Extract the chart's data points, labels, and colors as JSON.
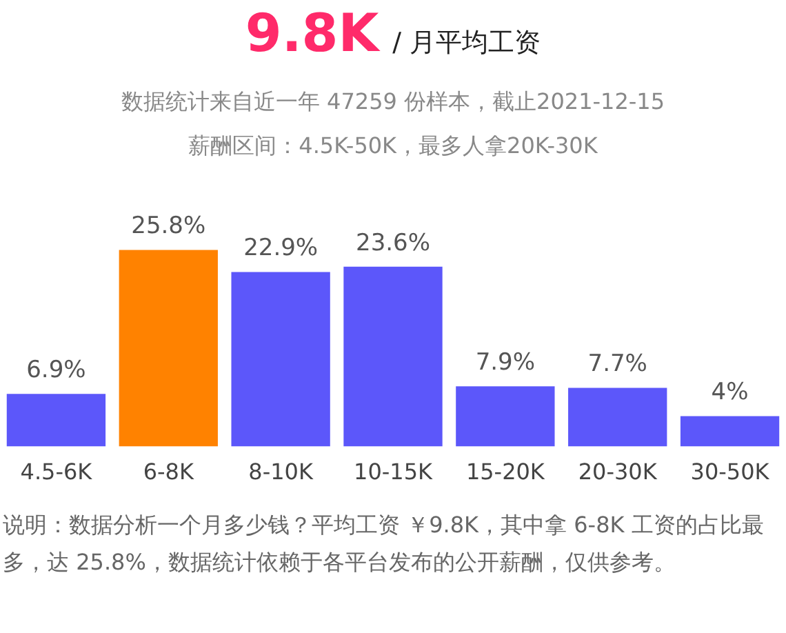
{
  "chart_data": {
    "type": "bar",
    "title": "9.8K",
    "subtitle": "/ 月平均工资",
    "annotations": [
      "数据统计来自近一年 47259 份样本，截止2021-12-15",
      "薪酬区间：4.5K-50K，最多人拿20K-30K",
      "说明：数据分析一个月多少钱？平均工资 ￥9.8K，其中拿 6-8K 工资的占比最多，达 25.8%，数据统计依赖于各平台发布的公开薪酬，仅供参考。"
    ],
    "categories": [
      "4.5-6K",
      "6-8K",
      "8-10K",
      "10-15K",
      "15-20K",
      "20-30K",
      "30-50K"
    ],
    "values": [
      6.9,
      25.8,
      22.9,
      23.6,
      7.9,
      7.7,
      4
    ],
    "value_labels": [
      "6.9%",
      "25.8%",
      "22.9%",
      "23.6%",
      "7.9%",
      "7.7%",
      "4%"
    ],
    "colors": [
      "#5c57fa",
      "#ff8200",
      "#5c57fa",
      "#5c57fa",
      "#5c57fa",
      "#5c57fa",
      "#5c57fa"
    ],
    "grid": false,
    "legend": false
  }
}
